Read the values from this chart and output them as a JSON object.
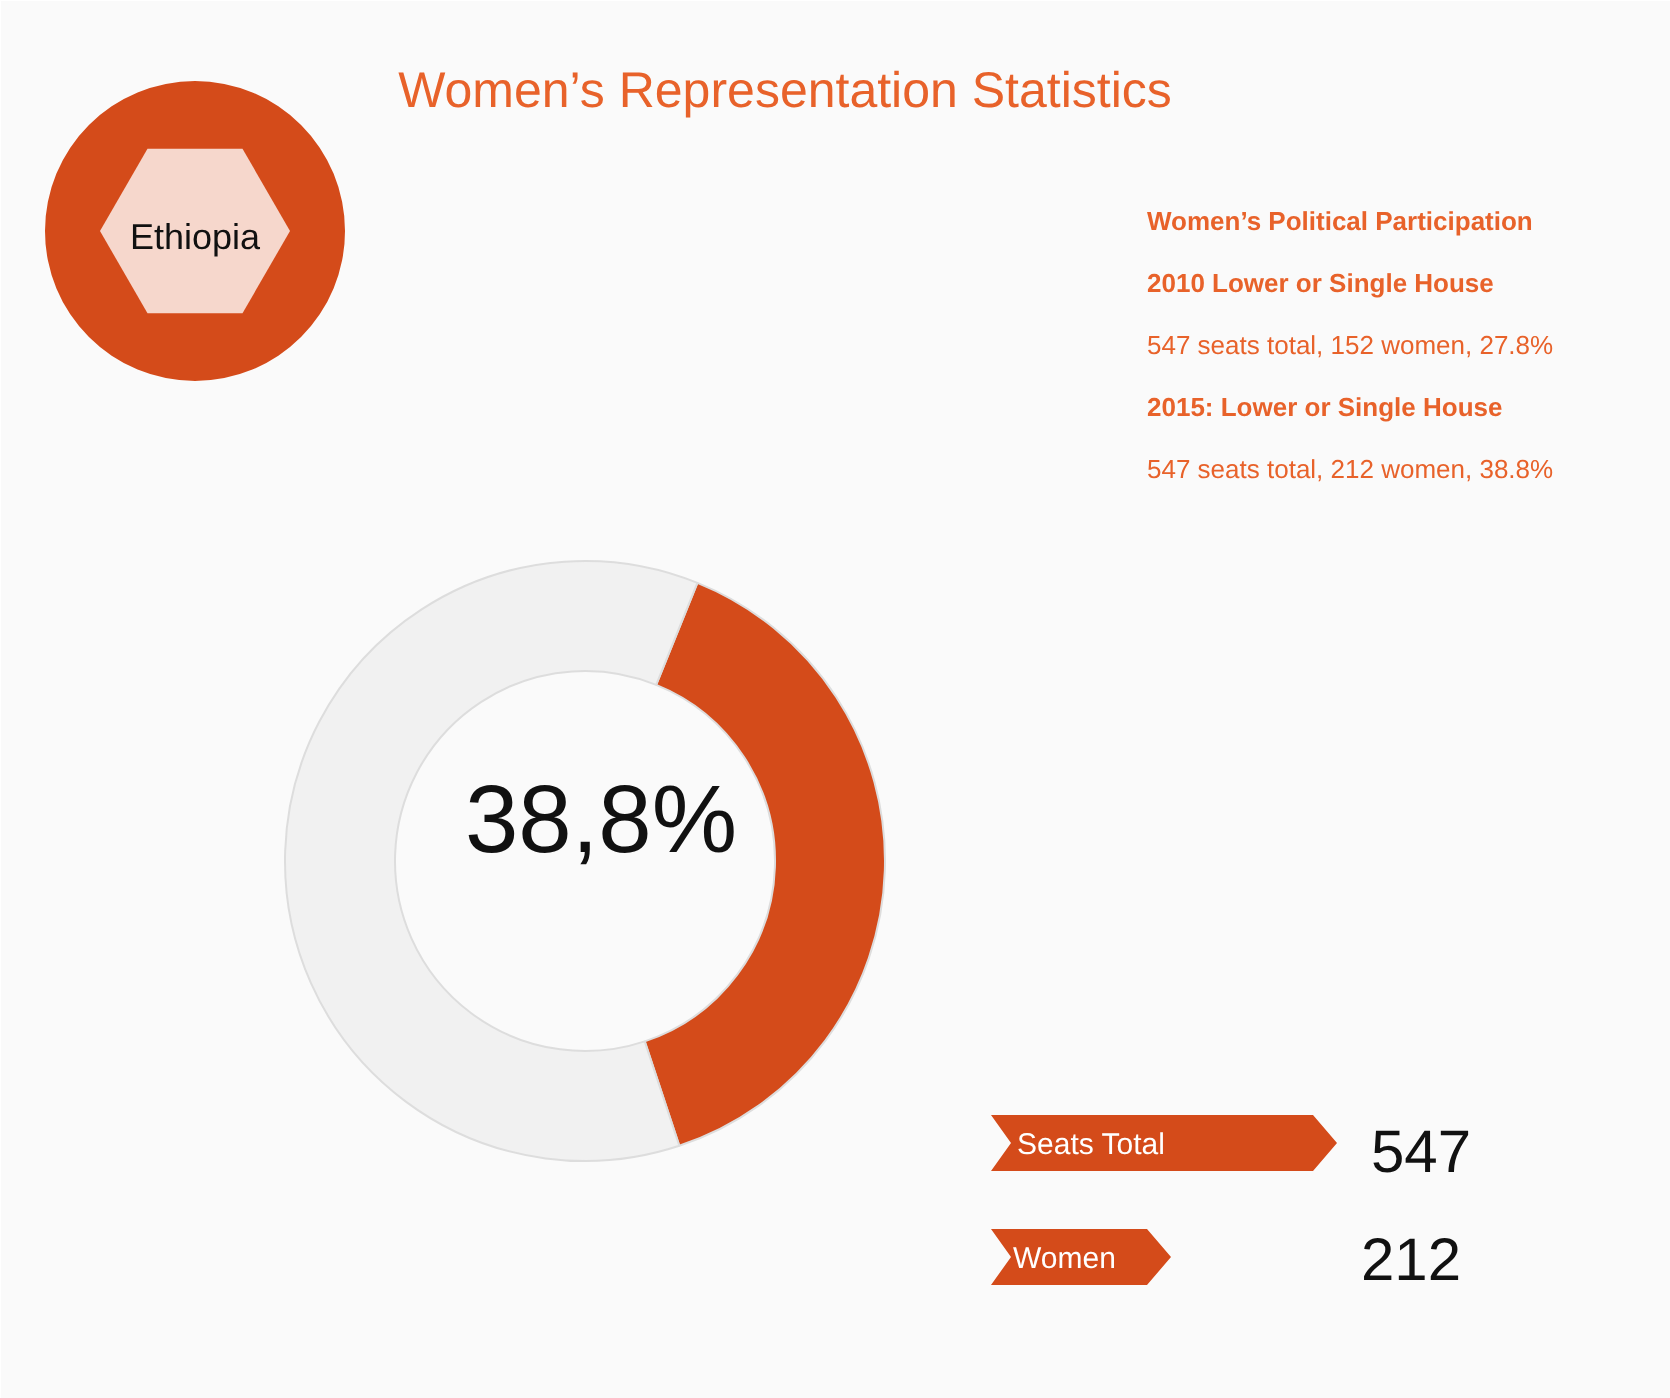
{
  "chart_data": {
    "type": "donut",
    "title": "Women’s Representation Statistics",
    "categories": [
      null,
      null
    ],
    "values": [
      38.8,
      61.2
    ],
    "colors": [
      "#d44b1a",
      "#f1f1f1"
    ],
    "annotations": [
      "Ethiopia",
      "Women’s Political Participation",
      "2010 Lower or Single House",
      "547 seats total, 152 women, 27.8%",
      "2015: Lower or Single House",
      "547 seats total, 212 women, 38.8%",
      "38,8%",
      "Seats Total",
      "547",
      "Women",
      "212"
    ]
  }
}
